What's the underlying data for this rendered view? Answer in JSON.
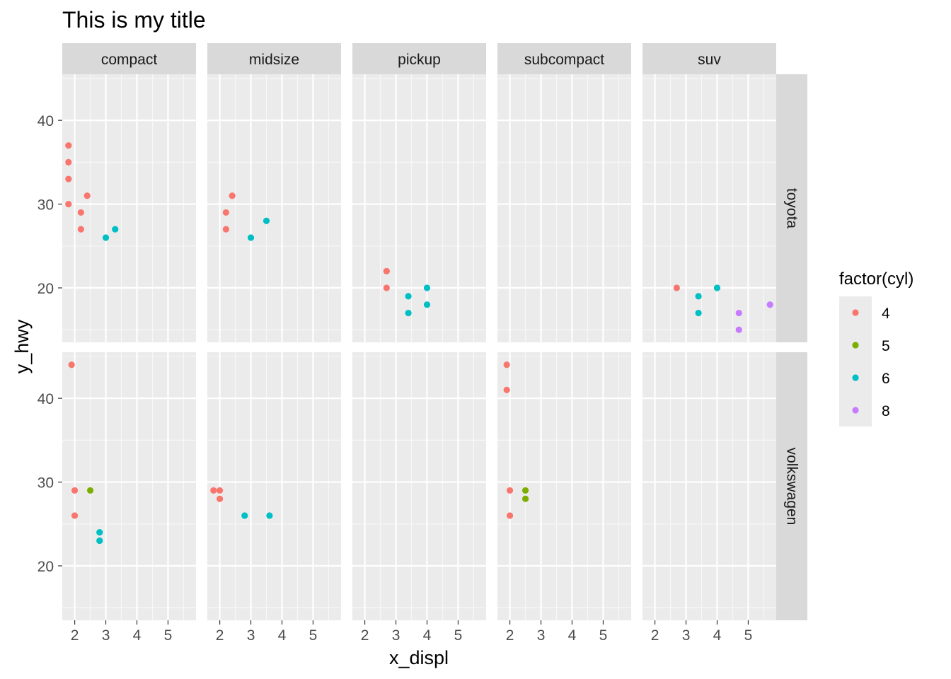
{
  "chart_data": {
    "type": "scatter",
    "title": "This is my title",
    "xlabel": "x_displ",
    "ylabel": "y_hwy",
    "facet_cols": [
      "compact",
      "midsize",
      "pickup",
      "subcompact",
      "suv"
    ],
    "facet_rows": [
      "toyota",
      "volkswagen"
    ],
    "xlim": [
      1.6,
      5.9
    ],
    "ylim": [
      13.5,
      45.5
    ],
    "x_ticks": [
      2,
      3,
      4,
      5
    ],
    "y_ticks": [
      20,
      30,
      40
    ],
    "grid": true,
    "legend": {
      "title": "factor(cyl)",
      "position": "right",
      "entries": [
        {
          "label": "4",
          "color": "#F8766D"
        },
        {
          "label": "5",
          "color": "#7CAE00"
        },
        {
          "label": "6",
          "color": "#00BFC4"
        },
        {
          "label": "8",
          "color": "#C77CFF"
        }
      ]
    },
    "points": [
      {
        "row": "toyota",
        "col": "compact",
        "x": 1.8,
        "y": 37,
        "cyl": "4"
      },
      {
        "row": "toyota",
        "col": "compact",
        "x": 1.8,
        "y": 35,
        "cyl": "4"
      },
      {
        "row": "toyota",
        "col": "compact",
        "x": 1.8,
        "y": 33,
        "cyl": "4"
      },
      {
        "row": "toyota",
        "col": "compact",
        "x": 1.8,
        "y": 30,
        "cyl": "4"
      },
      {
        "row": "toyota",
        "col": "compact",
        "x": 2.4,
        "y": 31,
        "cyl": "4"
      },
      {
        "row": "toyota",
        "col": "compact",
        "x": 2.2,
        "y": 29,
        "cyl": "4"
      },
      {
        "row": "toyota",
        "col": "compact",
        "x": 2.2,
        "y": 27,
        "cyl": "4"
      },
      {
        "row": "toyota",
        "col": "compact",
        "x": 3.0,
        "y": 26,
        "cyl": "6"
      },
      {
        "row": "toyota",
        "col": "compact",
        "x": 3.3,
        "y": 27,
        "cyl": "6"
      },
      {
        "row": "toyota",
        "col": "midsize",
        "x": 2.2,
        "y": 29,
        "cyl": "4"
      },
      {
        "row": "toyota",
        "col": "midsize",
        "x": 2.2,
        "y": 27,
        "cyl": "4"
      },
      {
        "row": "toyota",
        "col": "midsize",
        "x": 2.4,
        "y": 31,
        "cyl": "4"
      },
      {
        "row": "toyota",
        "col": "midsize",
        "x": 3.0,
        "y": 26,
        "cyl": "6"
      },
      {
        "row": "toyota",
        "col": "midsize",
        "x": 3.5,
        "y": 28,
        "cyl": "6"
      },
      {
        "row": "toyota",
        "col": "pickup",
        "x": 2.7,
        "y": 22,
        "cyl": "4"
      },
      {
        "row": "toyota",
        "col": "pickup",
        "x": 2.7,
        "y": 20,
        "cyl": "4"
      },
      {
        "row": "toyota",
        "col": "pickup",
        "x": 3.4,
        "y": 19,
        "cyl": "6"
      },
      {
        "row": "toyota",
        "col": "pickup",
        "x": 3.4,
        "y": 17,
        "cyl": "6"
      },
      {
        "row": "toyota",
        "col": "pickup",
        "x": 4.0,
        "y": 20,
        "cyl": "6"
      },
      {
        "row": "toyota",
        "col": "pickup",
        "x": 4.0,
        "y": 18,
        "cyl": "6"
      },
      {
        "row": "toyota",
        "col": "suv",
        "x": 2.7,
        "y": 20,
        "cyl": "4"
      },
      {
        "row": "toyota",
        "col": "suv",
        "x": 3.4,
        "y": 19,
        "cyl": "6"
      },
      {
        "row": "toyota",
        "col": "suv",
        "x": 3.4,
        "y": 17,
        "cyl": "6"
      },
      {
        "row": "toyota",
        "col": "suv",
        "x": 4.0,
        "y": 20,
        "cyl": "6"
      },
      {
        "row": "toyota",
        "col": "suv",
        "x": 4.7,
        "y": 17,
        "cyl": "8"
      },
      {
        "row": "toyota",
        "col": "suv",
        "x": 4.7,
        "y": 15,
        "cyl": "8"
      },
      {
        "row": "toyota",
        "col": "suv",
        "x": 5.7,
        "y": 18,
        "cyl": "8"
      },
      {
        "row": "volkswagen",
        "col": "compact",
        "x": 1.9,
        "y": 44,
        "cyl": "4"
      },
      {
        "row": "volkswagen",
        "col": "compact",
        "x": 2.0,
        "y": 29,
        "cyl": "4"
      },
      {
        "row": "volkswagen",
        "col": "compact",
        "x": 2.0,
        "y": 26,
        "cyl": "4"
      },
      {
        "row": "volkswagen",
        "col": "compact",
        "x": 2.5,
        "y": 29,
        "cyl": "5"
      },
      {
        "row": "volkswagen",
        "col": "compact",
        "x": 2.8,
        "y": 24,
        "cyl": "6"
      },
      {
        "row": "volkswagen",
        "col": "compact",
        "x": 2.8,
        "y": 23,
        "cyl": "6"
      },
      {
        "row": "volkswagen",
        "col": "midsize",
        "x": 1.8,
        "y": 29,
        "cyl": "4"
      },
      {
        "row": "volkswagen",
        "col": "midsize",
        "x": 2.0,
        "y": 29,
        "cyl": "4"
      },
      {
        "row": "volkswagen",
        "col": "midsize",
        "x": 2.0,
        "y": 28,
        "cyl": "4"
      },
      {
        "row": "volkswagen",
        "col": "midsize",
        "x": 2.8,
        "y": 26,
        "cyl": "6"
      },
      {
        "row": "volkswagen",
        "col": "midsize",
        "x": 3.6,
        "y": 26,
        "cyl": "6"
      },
      {
        "row": "volkswagen",
        "col": "subcompact",
        "x": 1.9,
        "y": 44,
        "cyl": "4"
      },
      {
        "row": "volkswagen",
        "col": "subcompact",
        "x": 1.9,
        "y": 41,
        "cyl": "4"
      },
      {
        "row": "volkswagen",
        "col": "subcompact",
        "x": 2.0,
        "y": 29,
        "cyl": "4"
      },
      {
        "row": "volkswagen",
        "col": "subcompact",
        "x": 2.0,
        "y": 26,
        "cyl": "4"
      },
      {
        "row": "volkswagen",
        "col": "subcompact",
        "x": 2.5,
        "y": 29,
        "cyl": "5"
      },
      {
        "row": "volkswagen",
        "col": "subcompact",
        "x": 2.5,
        "y": 28,
        "cyl": "5"
      }
    ]
  }
}
